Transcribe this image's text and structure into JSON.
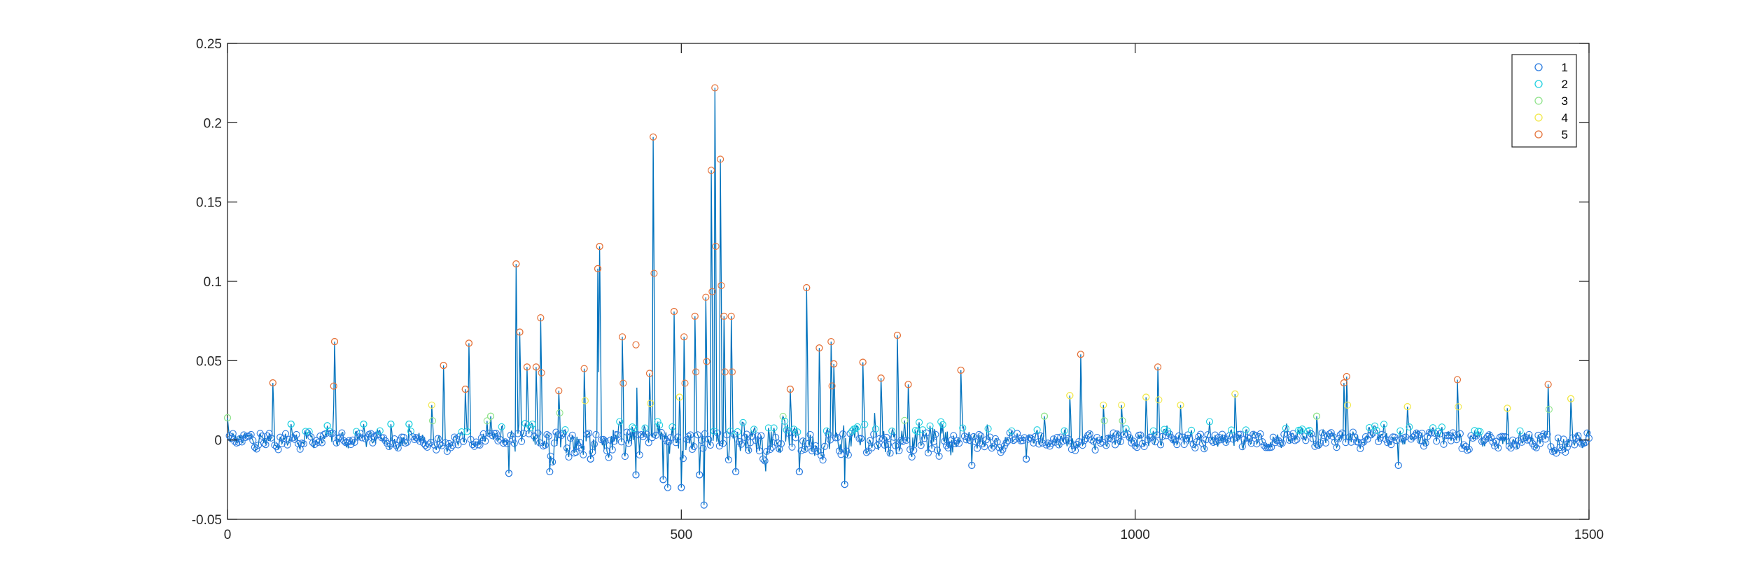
{
  "chart_data": {
    "type": "scatter",
    "title": "",
    "xlabel": "",
    "ylabel": "",
    "xlim": [
      0,
      1500
    ],
    "ylim": [
      -0.05,
      0.25
    ],
    "xticks": [
      0,
      500,
      1000,
      1500
    ],
    "xtick_labels": [
      "0",
      "500",
      "1000",
      "1500"
    ],
    "yticks": [
      -0.05,
      0,
      0.05,
      0.1,
      0.15,
      0.2,
      0.25
    ],
    "ytick_labels": [
      "-0.05",
      "0",
      "0.05",
      "0.1",
      "0.15",
      "0.2",
      "0.25"
    ],
    "grid": false,
    "legend_position": "top-right",
    "connecting_line": true,
    "line_color": "#0072BD",
    "marker": "open-circle",
    "series_colors": [
      "#2a7be0",
      "#1fd0e0",
      "#8fe38a",
      "#f2e84a",
      "#e5733a"
    ],
    "series_names": [
      "1",
      "2",
      "3",
      "4",
      "5"
    ],
    "class_thresholds": [
      0.005,
      0.012,
      0.02,
      0.03
    ],
    "peaks": [
      {
        "x": 0,
        "y": 0.014
      },
      {
        "x": 50,
        "y": 0.036
      },
      {
        "x": 70,
        "y": 0.01
      },
      {
        "x": 110,
        "y": 0.009
      },
      {
        "x": 117,
        "y": 0.034
      },
      {
        "x": 118,
        "y": 0.062
      },
      {
        "x": 150,
        "y": 0.01
      },
      {
        "x": 180,
        "y": 0.01
      },
      {
        "x": 200,
        "y": 0.01
      },
      {
        "x": 225,
        "y": 0.022
      },
      {
        "x": 238,
        "y": 0.047
      },
      {
        "x": 262,
        "y": 0.032
      },
      {
        "x": 266,
        "y": 0.061
      },
      {
        "x": 290,
        "y": 0.015
      },
      {
        "x": 318,
        "y": 0.111
      },
      {
        "x": 322,
        "y": 0.068
      },
      {
        "x": 330,
        "y": 0.046
      },
      {
        "x": 340,
        "y": 0.046
      },
      {
        "x": 345,
        "y": 0.077
      },
      {
        "x": 365,
        "y": 0.031
      },
      {
        "x": 393,
        "y": 0.045
      },
      {
        "x": 408,
        "y": 0.108
      },
      {
        "x": 410,
        "y": 0.122
      },
      {
        "x": 435,
        "y": 0.065
      },
      {
        "x": 450,
        "y": 0.06
      },
      {
        "x": 465,
        "y": 0.042
      },
      {
        "x": 469,
        "y": 0.191
      },
      {
        "x": 492,
        "y": 0.081
      },
      {
        "x": 498,
        "y": 0.027
      },
      {
        "x": 503,
        "y": 0.065
      },
      {
        "x": 515,
        "y": 0.078
      },
      {
        "x": 527,
        "y": 0.09
      },
      {
        "x": 533,
        "y": 0.17
      },
      {
        "x": 537,
        "y": 0.222
      },
      {
        "x": 543,
        "y": 0.177
      },
      {
        "x": 547,
        "y": 0.078
      },
      {
        "x": 555,
        "y": 0.078
      },
      {
        "x": 620,
        "y": 0.032
      },
      {
        "x": 638,
        "y": 0.096
      },
      {
        "x": 652,
        "y": 0.058
      },
      {
        "x": 665,
        "y": 0.062
      },
      {
        "x": 668,
        "y": 0.048
      },
      {
        "x": 700,
        "y": 0.049
      },
      {
        "x": 720,
        "y": 0.039
      },
      {
        "x": 738,
        "y": 0.066
      },
      {
        "x": 750,
        "y": 0.035
      },
      {
        "x": 808,
        "y": 0.044
      },
      {
        "x": 900,
        "y": 0.015
      },
      {
        "x": 928,
        "y": 0.028
      },
      {
        "x": 940,
        "y": 0.054
      },
      {
        "x": 965,
        "y": 0.022
      },
      {
        "x": 985,
        "y": 0.022
      },
      {
        "x": 1012,
        "y": 0.027
      },
      {
        "x": 1025,
        "y": 0.046
      },
      {
        "x": 1050,
        "y": 0.022
      },
      {
        "x": 1110,
        "y": 0.029
      },
      {
        "x": 1200,
        "y": 0.015
      },
      {
        "x": 1230,
        "y": 0.036
      },
      {
        "x": 1233,
        "y": 0.04
      },
      {
        "x": 1300,
        "y": 0.021
      },
      {
        "x": 1355,
        "y": 0.038
      },
      {
        "x": 1410,
        "y": 0.02
      },
      {
        "x": 1455,
        "y": 0.035
      },
      {
        "x": 1480,
        "y": 0.026
      }
    ],
    "dips": [
      {
        "x": 310,
        "y": -0.021
      },
      {
        "x": 355,
        "y": -0.02
      },
      {
        "x": 400,
        "y": -0.012
      },
      {
        "x": 450,
        "y": -0.022
      },
      {
        "x": 480,
        "y": -0.025
      },
      {
        "x": 485,
        "y": -0.03
      },
      {
        "x": 500,
        "y": -0.03
      },
      {
        "x": 520,
        "y": -0.022
      },
      {
        "x": 525,
        "y": -0.041
      },
      {
        "x": 560,
        "y": -0.02
      },
      {
        "x": 630,
        "y": -0.02
      },
      {
        "x": 680,
        "y": -0.028
      },
      {
        "x": 820,
        "y": -0.016
      },
      {
        "x": 880,
        "y": -0.012
      },
      {
        "x": 1290,
        "y": -0.016
      }
    ]
  }
}
